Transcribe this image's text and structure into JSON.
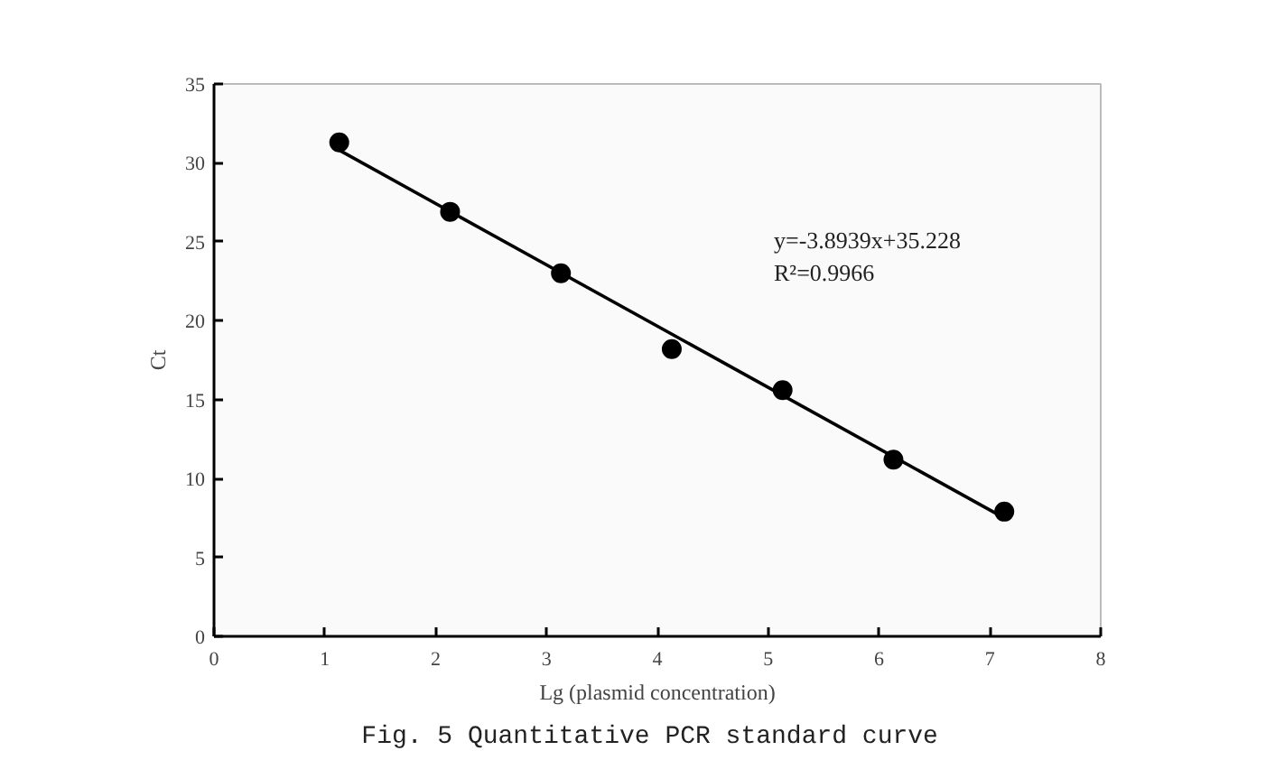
{
  "chart_data": {
    "type": "scatter",
    "xlabel": "Lg (plasmid concentration)",
    "ylabel": "Ct",
    "xlim": [
      0,
      8
    ],
    "ylim": [
      0,
      35
    ],
    "xticks": [
      0,
      1,
      2,
      3,
      4,
      5,
      6,
      7,
      8
    ],
    "yticks": [
      0,
      5,
      10,
      15,
      20,
      25,
      30,
      35
    ],
    "grid": false,
    "x": [
      1.13,
      2.13,
      3.13,
      4.13,
      5.13,
      6.13,
      7.13
    ],
    "series": [
      {
        "color": "#000000",
        "marker": "circle",
        "values": [
          31.3,
          26.9,
          23.0,
          18.2,
          15.6,
          11.2,
          7.9
        ]
      },
      {
        "type": "line",
        "color": "#000000",
        "x": [
          1.13,
          7.13
        ],
        "values": [
          30.8,
          7.5
        ],
        "line_style": "solid",
        "marker": "none"
      }
    ],
    "annotations": [
      "y=-3.8939x+35.228",
      "R²=0.9966",
      "Fig. 5  Quantitative PCR standard curve"
    ]
  }
}
